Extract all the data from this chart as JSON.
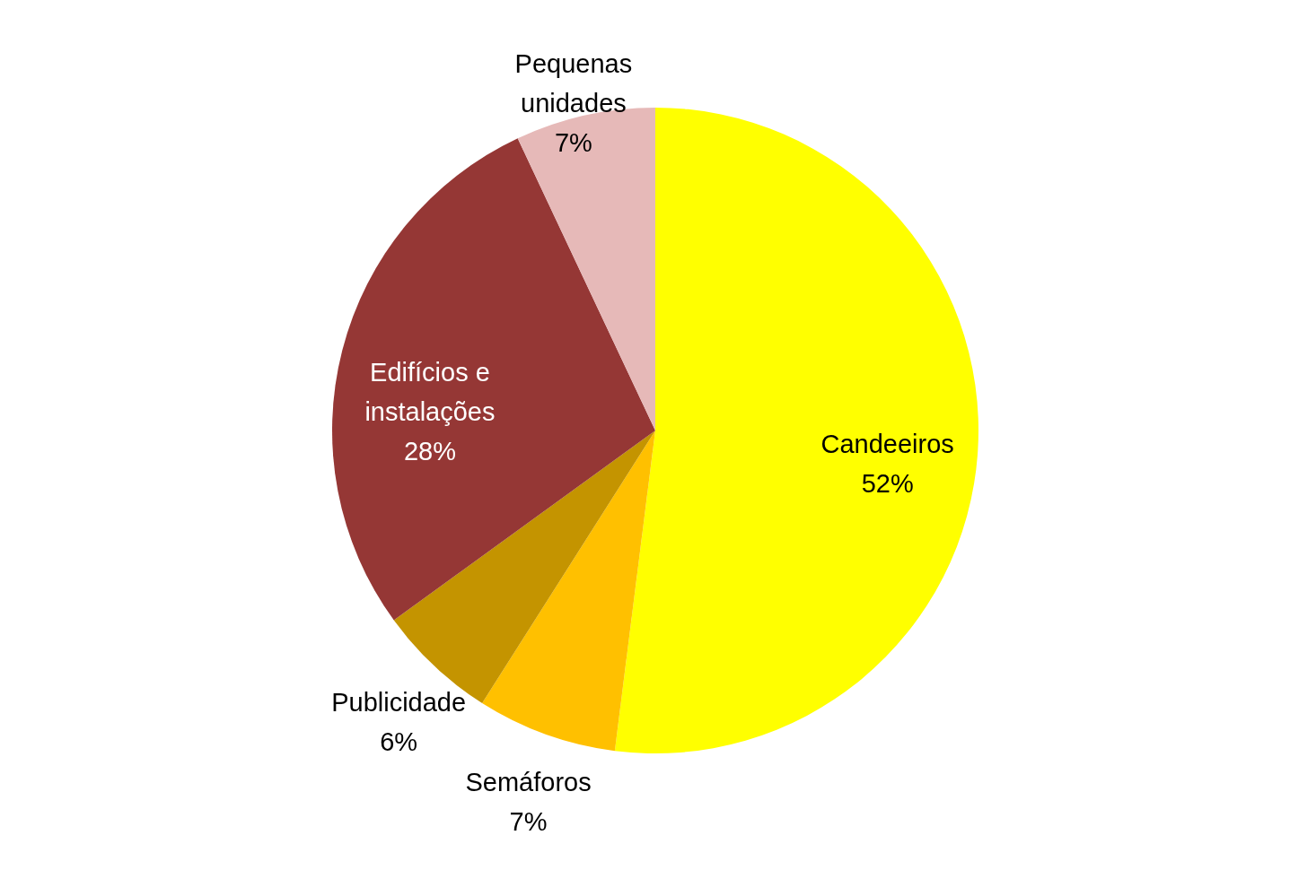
{
  "chart_data": {
    "type": "pie",
    "categories": [
      "Candeeiros",
      "Semáforos",
      "Publicidade",
      "Edifícios e instalações",
      "Pequenas unidades"
    ],
    "values": [
      52,
      7,
      6,
      28,
      7
    ],
    "value_labels": [
      "52%",
      "7%",
      "6%",
      "28%",
      "7%"
    ],
    "colors": [
      "#ffff00",
      "#ffc000",
      "#c49400",
      "#953735",
      "#e6b9b8"
    ],
    "legend": false
  }
}
